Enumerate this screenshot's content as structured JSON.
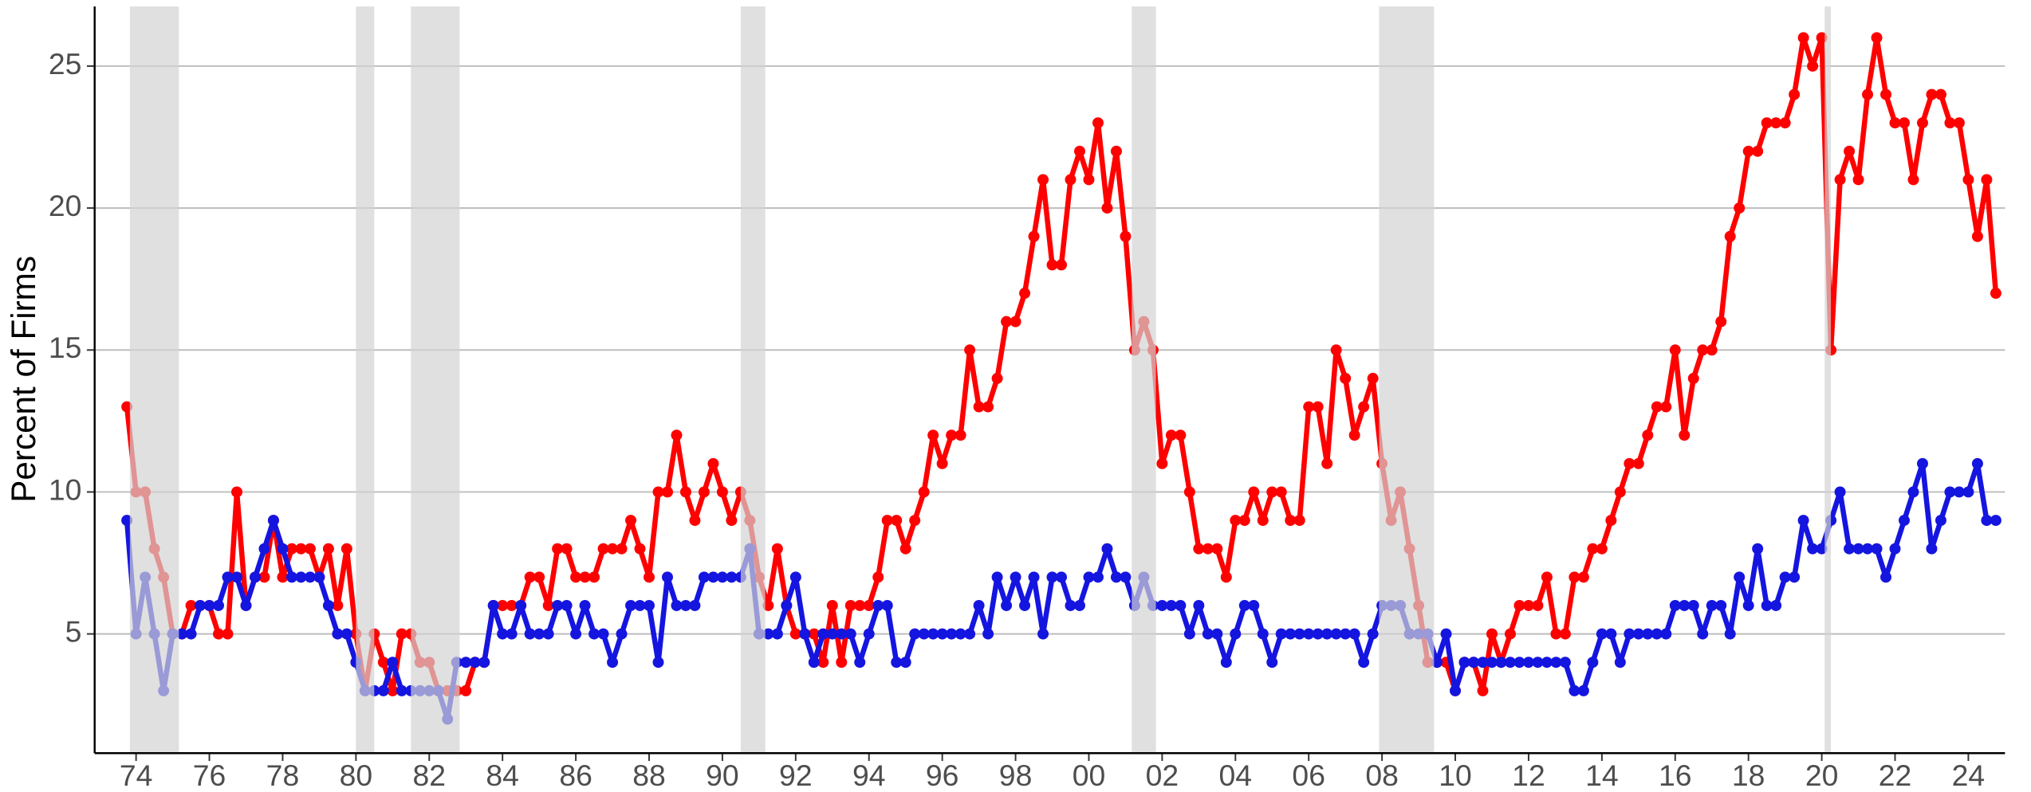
{
  "chart_data": {
    "type": "line",
    "ylabel": "Percent of Firms",
    "xlim": [
      1972.87,
      2025.0
    ],
    "ylim": [
      0.8,
      27.1
    ],
    "xticks": [
      {
        "value": 1974,
        "label": "74"
      },
      {
        "value": 1976,
        "label": "76"
      },
      {
        "value": 1978,
        "label": "78"
      },
      {
        "value": 1980,
        "label": "80"
      },
      {
        "value": 1982,
        "label": "82"
      },
      {
        "value": 1984,
        "label": "84"
      },
      {
        "value": 1986,
        "label": "86"
      },
      {
        "value": 1988,
        "label": "88"
      },
      {
        "value": 1990,
        "label": "90"
      },
      {
        "value": 1992,
        "label": "92"
      },
      {
        "value": 1994,
        "label": "94"
      },
      {
        "value": 1996,
        "label": "96"
      },
      {
        "value": 1998,
        "label": "98"
      },
      {
        "value": 2000,
        "label": "00"
      },
      {
        "value": 2002,
        "label": "02"
      },
      {
        "value": 2004,
        "label": "04"
      },
      {
        "value": 2006,
        "label": "06"
      },
      {
        "value": 2008,
        "label": "08"
      },
      {
        "value": 2010,
        "label": "10"
      },
      {
        "value": 2012,
        "label": "12"
      },
      {
        "value": 2014,
        "label": "14"
      },
      {
        "value": 2016,
        "label": "16"
      },
      {
        "value": 2018,
        "label": "18"
      },
      {
        "value": 2020,
        "label": "20"
      },
      {
        "value": 2022,
        "label": "22"
      },
      {
        "value": 2024,
        "label": "24"
      }
    ],
    "yticks": [
      5,
      10,
      15,
      20,
      25
    ],
    "grid": true,
    "recession_color": "#d3d3d3",
    "recessions": [
      [
        1973.83,
        1975.17
      ],
      [
        1980.0,
        1980.5
      ],
      [
        1981.5,
        1982.83
      ],
      [
        1990.5,
        1991.17
      ],
      [
        2001.17,
        2001.83
      ],
      [
        2007.92,
        2009.42
      ],
      [
        2020.08,
        2020.25
      ]
    ],
    "x": [
      1973.75,
      1974,
      1974.25,
      1974.5,
      1974.75,
      1975,
      1975.25,
      1975.5,
      1975.75,
      1976,
      1976.25,
      1976.5,
      1976.75,
      1977,
      1977.25,
      1977.5,
      1977.75,
      1978,
      1978.25,
      1978.5,
      1978.75,
      1979,
      1979.25,
      1979.5,
      1979.75,
      1980,
      1980.25,
      1980.5,
      1980.75,
      1981,
      1981.25,
      1981.5,
      1981.75,
      1982,
      1982.25,
      1982.5,
      1982.75,
      1983,
      1983.25,
      1983.5,
      1983.75,
      1984,
      1984.25,
      1984.5,
      1984.75,
      1985,
      1985.25,
      1985.5,
      1985.75,
      1986,
      1986.25,
      1986.5,
      1986.75,
      1987,
      1987.25,
      1987.5,
      1987.75,
      1988,
      1988.25,
      1988.5,
      1988.75,
      1989,
      1989.25,
      1989.5,
      1989.75,
      1990,
      1990.25,
      1990.5,
      1990.75,
      1991,
      1991.25,
      1991.5,
      1991.75,
      1992,
      1992.25,
      1992.5,
      1992.75,
      1993,
      1993.25,
      1993.5,
      1993.75,
      1994,
      1994.25,
      1994.5,
      1994.75,
      1995,
      1995.25,
      1995.5,
      1995.75,
      1996,
      1996.25,
      1996.5,
      1996.75,
      1997,
      1997.25,
      1997.5,
      1997.75,
      1998,
      1998.25,
      1998.5,
      1998.75,
      1999,
      1999.25,
      1999.5,
      1999.75,
      2000,
      2000.25,
      2000.5,
      2000.75,
      2001,
      2001.25,
      2001.5,
      2001.75,
      2002,
      2002.25,
      2002.5,
      2002.75,
      2003,
      2003.25,
      2003.5,
      2003.75,
      2004,
      2004.25,
      2004.5,
      2004.75,
      2005,
      2005.25,
      2005.5,
      2005.75,
      2006,
      2006.25,
      2006.5,
      2006.75,
      2007,
      2007.25,
      2007.5,
      2007.75,
      2008,
      2008.25,
      2008.5,
      2008.75,
      2009,
      2009.25,
      2009.5,
      2009.75,
      2010,
      2010.25,
      2010.5,
      2010.75,
      2011,
      2011.25,
      2011.5,
      2011.75,
      2012,
      2012.25,
      2012.5,
      2012.75,
      2013,
      2013.25,
      2013.5,
      2013.75,
      2014,
      2014.25,
      2014.5,
      2014.75,
      2015,
      2015.25,
      2015.5,
      2015.75,
      2016,
      2016.25,
      2016.5,
      2016.75,
      2017,
      2017.25,
      2017.5,
      2017.75,
      2018,
      2018.25,
      2018.5,
      2018.75,
      2019,
      2019.25,
      2019.5,
      2019.75,
      2020,
      2020.25,
      2020.5,
      2020.75,
      2021,
      2021.25,
      2021.5,
      2021.75,
      2022,
      2022.25,
      2022.5,
      2022.75,
      2023,
      2023.25,
      2023.5,
      2023.75,
      2024,
      2024.25,
      2024.5,
      2024.75
    ],
    "series": [
      {
        "color": "#ff0000",
        "values": [
          13,
          10,
          10,
          8,
          7,
          5,
          5,
          6,
          6,
          6,
          5,
          5,
          10,
          6,
          7,
          7,
          9,
          7,
          8,
          8,
          8,
          7,
          8,
          6,
          8,
          5,
          3,
          5,
          4,
          3,
          5,
          5,
          4,
          4,
          3,
          3,
          3,
          3,
          4,
          4,
          6,
          6,
          6,
          6,
          7,
          7,
          6,
          8,
          8,
          7,
          7,
          7,
          8,
          8,
          8,
          9,
          8,
          7,
          10,
          10,
          12,
          10,
          9,
          10,
          11,
          10,
          9,
          10,
          9,
          7,
          6,
          8,
          6,
          5,
          5,
          5,
          4,
          6,
          4,
          6,
          6,
          6,
          7,
          9,
          9,
          8,
          9,
          10,
          12,
          11,
          12,
          12,
          15,
          13,
          13,
          14,
          16,
          16,
          17,
          19,
          21,
          18,
          18,
          21,
          22,
          21,
          23,
          20,
          22,
          19,
          15,
          16,
          15,
          11,
          12,
          12,
          10,
          8,
          8,
          8,
          7,
          9,
          9,
          10,
          9,
          10,
          10,
          9,
          9,
          13,
          13,
          11,
          15,
          14,
          12,
          13,
          14,
          11,
          9,
          10,
          8,
          6,
          4,
          4,
          4,
          3,
          4,
          4,
          3,
          5,
          4,
          5,
          6,
          6,
          6,
          7,
          5,
          5,
          7,
          7,
          8,
          8,
          9,
          10,
          11,
          11,
          12,
          13,
          13,
          15,
          12,
          14,
          15,
          15,
          16,
          19,
          20,
          22,
          22,
          23,
          23,
          23,
          24,
          26,
          25,
          26,
          15,
          21,
          22,
          21,
          24,
          26,
          24,
          23,
          23,
          21,
          23,
          24,
          24,
          23,
          23,
          21,
          19,
          21,
          17
        ]
      },
      {
        "color": "#1515e0",
        "values": [
          9,
          5,
          7,
          5,
          3,
          5,
          5,
          5,
          6,
          6,
          6,
          7,
          7,
          6,
          7,
          8,
          9,
          8,
          7,
          7,
          7,
          7,
          6,
          5,
          5,
          4,
          3,
          3,
          3,
          4,
          3,
          3,
          3,
          3,
          3,
          2,
          4,
          4,
          4,
          4,
          6,
          5,
          5,
          6,
          5,
          5,
          5,
          6,
          6,
          5,
          6,
          5,
          5,
          4,
          5,
          6,
          6,
          6,
          4,
          7,
          6,
          6,
          6,
          7,
          7,
          7,
          7,
          7,
          8,
          5,
          5,
          5,
          6,
          7,
          5,
          4,
          5,
          5,
          5,
          5,
          4,
          5,
          6,
          6,
          4,
          4,
          5,
          5,
          5,
          5,
          5,
          5,
          5,
          6,
          5,
          7,
          6,
          7,
          6,
          7,
          5,
          7,
          7,
          6,
          6,
          7,
          7,
          8,
          7,
          7,
          6,
          7,
          6,
          6,
          6,
          6,
          5,
          6,
          5,
          5,
          4,
          5,
          6,
          6,
          5,
          4,
          5,
          5,
          5,
          5,
          5,
          5,
          5,
          5,
          5,
          4,
          5,
          6,
          6,
          6,
          5,
          5,
          5,
          4,
          5,
          3,
          4,
          4,
          4,
          4,
          4,
          4,
          4,
          4,
          4,
          4,
          4,
          4,
          3,
          3,
          4,
          5,
          5,
          4,
          5,
          5,
          5,
          5,
          5,
          6,
          6,
          6,
          5,
          6,
          6,
          5,
          7,
          6,
          8,
          6,
          6,
          7,
          7,
          9,
          8,
          8,
          9,
          10,
          8,
          8,
          8,
          8,
          7,
          8,
          9,
          10,
          11,
          8,
          9,
          10,
          10,
          10,
          11,
          9,
          9
        ]
      }
    ]
  }
}
